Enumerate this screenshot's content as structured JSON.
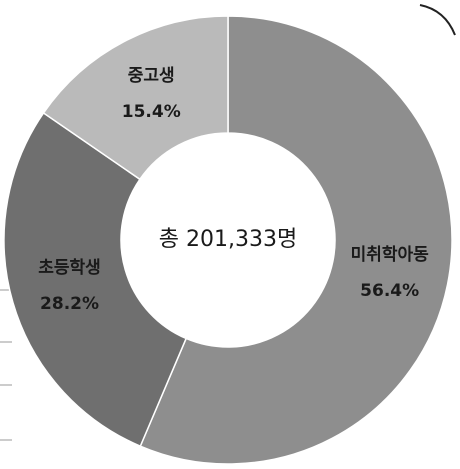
{
  "chart_data": {
    "type": "donut",
    "categories": [
      "미취학아동",
      "초등학생",
      "중고생"
    ],
    "values": [
      56.4,
      28.2,
      15.4
    ],
    "value_labels": [
      "56.4%",
      "28.2%",
      "15.4%"
    ],
    "colors": [
      "#8e8e8e",
      "#6f6f6f",
      "#bababa"
    ],
    "center_label": "총 201,333명"
  }
}
